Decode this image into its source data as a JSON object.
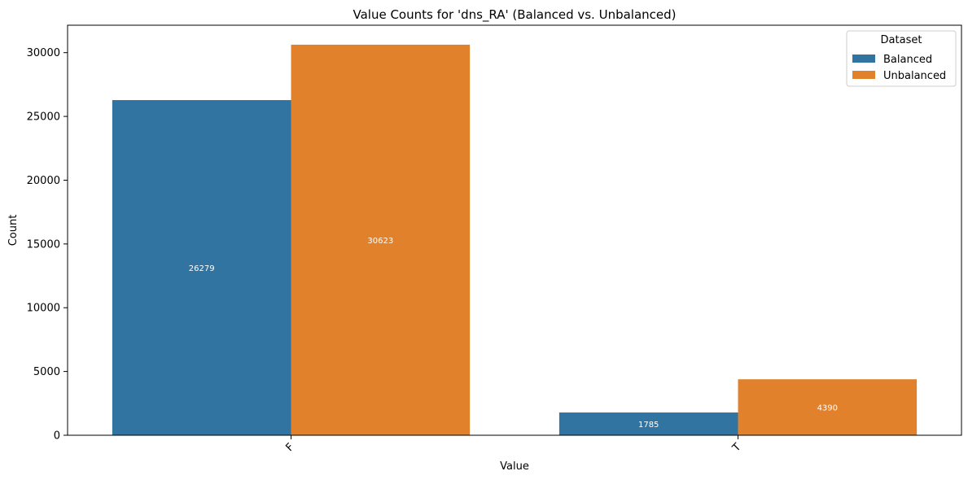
{
  "chart_data": {
    "type": "bar",
    "title": "Value Counts for 'dns_RA' (Balanced vs. Unbalanced)",
    "xlabel": "Value",
    "ylabel": "Count",
    "categories": [
      "F",
      "T"
    ],
    "series": [
      {
        "name": "Balanced",
        "values": [
          26279,
          1785
        ],
        "labels": [
          "26279",
          "1785"
        ],
        "color": "#3274a1"
      },
      {
        "name": "Unbalanced",
        "values": [
          30623,
          4390
        ],
        "labels": [
          "30623",
          "4390"
        ],
        "color": "#e1812c"
      }
    ],
    "ylim": [
      0,
      32150
    ],
    "yticks": [
      0,
      5000,
      10000,
      15000,
      20000,
      25000,
      30000
    ],
    "ytick_labels": [
      "0",
      "5000",
      "10000",
      "15000",
      "20000",
      "25000",
      "30000"
    ],
    "grid": false,
    "legend": {
      "title": "Dataset",
      "placement": "top-right"
    }
  }
}
